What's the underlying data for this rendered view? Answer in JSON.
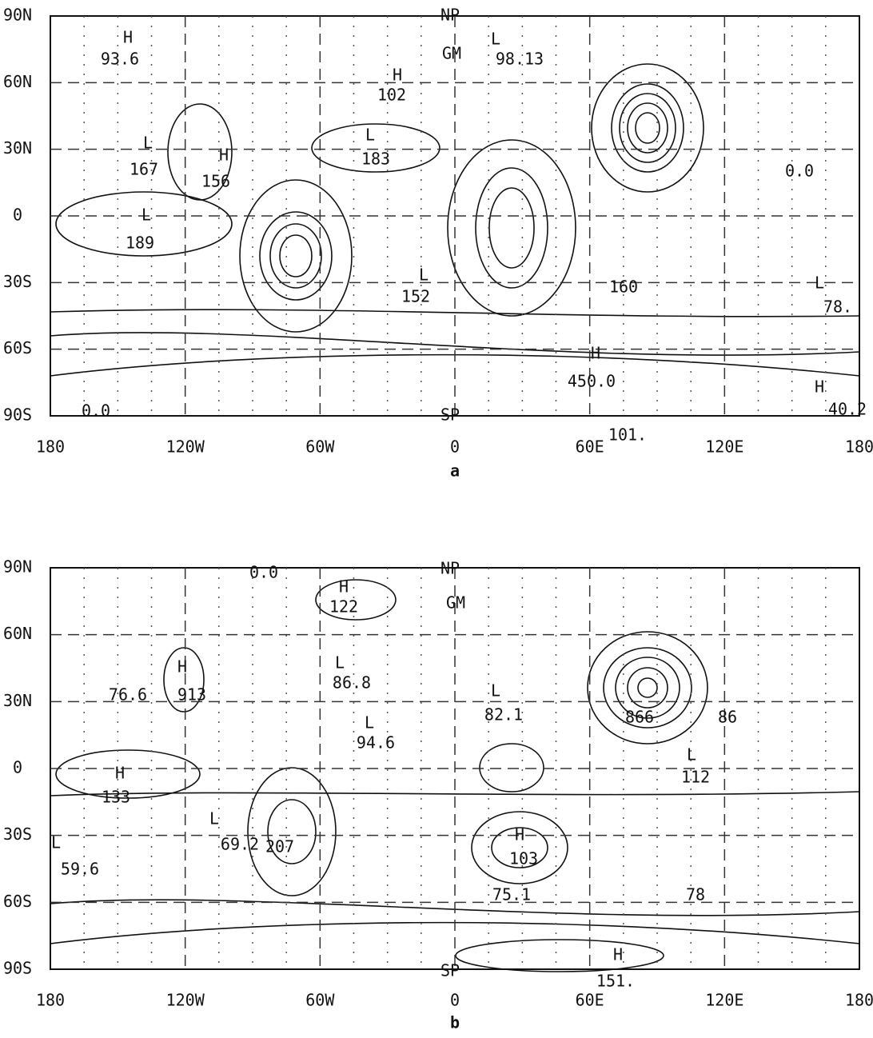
{
  "panels": [
    {
      "caption": "a",
      "x_axis": [
        "180",
        "120W",
        "60W",
        "0",
        "60E",
        "120E",
        "180"
      ],
      "y_axis": [
        "90N",
        "60N",
        "30N",
        "0",
        "30S",
        "60S",
        "90S"
      ],
      "annotations": [
        "NP",
        "SP",
        "GM",
        "H",
        "93.6",
        "L",
        "98.13",
        "H",
        "102",
        "L",
        "183",
        "L",
        "167",
        "H",
        "156",
        "L",
        "189",
        "L",
        "152",
        "160",
        "L",
        "78.",
        "H",
        "450.0",
        "H",
        "40.2",
        "101.",
        "0.0",
        "0.0"
      ]
    },
    {
      "caption": "b",
      "x_axis": [
        "180",
        "120W",
        "60W",
        "0",
        "60E",
        "120E",
        "180"
      ],
      "y_axis": [
        "90N",
        "60N",
        "30N",
        "0",
        "30S",
        "60S",
        "90S"
      ],
      "annotations": [
        "NP",
        "SP",
        "GM",
        "H",
        "122",
        "L",
        "86.8",
        "H",
        "76.6",
        "913",
        "L",
        "82.1",
        "L",
        "94.6",
        "H",
        "133",
        "L",
        "69.2",
        "207",
        "L",
        "59.6",
        "H",
        "103",
        "L",
        "112",
        "866",
        "86",
        "75.1",
        "78",
        "H",
        "151.",
        "0.0"
      ]
    }
  ]
}
